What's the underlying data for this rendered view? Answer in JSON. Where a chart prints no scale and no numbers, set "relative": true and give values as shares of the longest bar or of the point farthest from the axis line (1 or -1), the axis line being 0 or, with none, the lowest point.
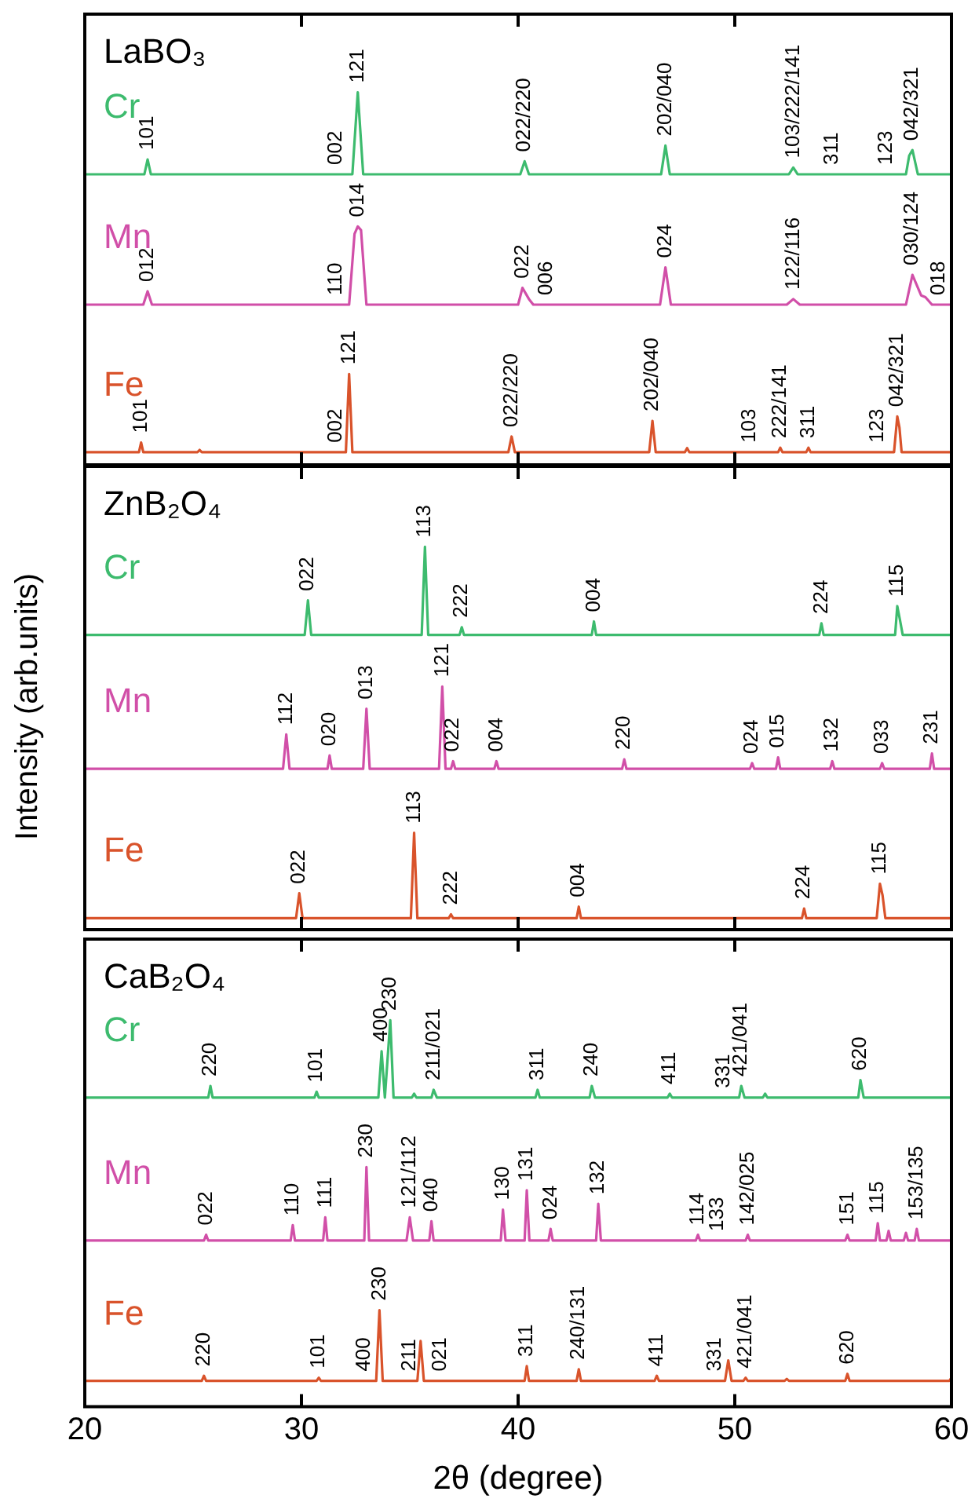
{
  "chart_data": [
    {
      "type": "line",
      "title": "LaBO₃",
      "relative": true,
      "xlim": [
        20,
        60
      ],
      "xticks": [
        20,
        30,
        40,
        50,
        60
      ],
      "tick_labels": false,
      "series": [
        {
          "name": "Cr",
          "color": "#3dbb6e",
          "x": [
            20,
            22.75,
            22.9,
            23.05,
            32.35,
            32.6,
            32.85,
            40.1,
            40.3,
            40.5,
            46.6,
            46.8,
            47.0,
            52.5,
            52.7,
            52.9,
            57.9,
            58.05,
            58.2,
            58.45,
            60
          ],
          "values": [
            0.78,
            0.78,
            0.82,
            0.78,
            0.78,
            1.0,
            0.78,
            0.78,
            0.815,
            0.78,
            0.78,
            0.857,
            0.78,
            0.78,
            0.798,
            0.78,
            0.78,
            0.83,
            0.845,
            0.78,
            0.78
          ]
        },
        {
          "name": "Mn",
          "color": "#d14fa8",
          "x": [
            20,
            22.7,
            22.9,
            23.1,
            32.2,
            32.45,
            32.6,
            32.75,
            33.0,
            40.0,
            40.2,
            40.5,
            40.7,
            46.55,
            46.8,
            47.05,
            52.4,
            52.7,
            53.0,
            57.9,
            58.2,
            58.6,
            58.8,
            59.1,
            60
          ],
          "values": [
            0.43,
            0.43,
            0.466,
            0.43,
            0.43,
            0.62,
            0.64,
            0.63,
            0.43,
            0.43,
            0.475,
            0.445,
            0.43,
            0.43,
            0.53,
            0.43,
            0.43,
            0.445,
            0.43,
            0.43,
            0.51,
            0.455,
            0.45,
            0.43,
            0.43
          ]
        },
        {
          "name": "Fe",
          "color": "#d9532b",
          "x": [
            20,
            22.5,
            22.6,
            22.7,
            25.2,
            25.3,
            25.4,
            32.05,
            32.2,
            32.35,
            39.55,
            39.7,
            39.85,
            46.05,
            46.2,
            46.35,
            47.7,
            47.8,
            47.9,
            52.0,
            52.1,
            52.2,
            53.3,
            53.4,
            53.5,
            57.35,
            57.5,
            57.6,
            57.7,
            60
          ],
          "values": [
            0.034,
            0.034,
            0.06,
            0.034,
            0.034,
            0.04,
            0.034,
            0.034,
            0.244,
            0.034,
            0.034,
            0.076,
            0.034,
            0.034,
            0.118,
            0.034,
            0.034,
            0.045,
            0.034,
            0.034,
            0.046,
            0.034,
            0.034,
            0.046,
            0.034,
            0.034,
            0.13,
            0.1,
            0.034,
            0.034
          ]
        }
      ],
      "annotations": [
        {
          "text": "101",
          "x": 22.9,
          "y": 0.82
        },
        {
          "text": "002",
          "x": 31.6,
          "y": 0.78
        },
        {
          "text": "121",
          "x": 32.6,
          "y": 1.0
        },
        {
          "text": "022/220",
          "x": 40.3,
          "y": 0.815
        },
        {
          "text": "202/040",
          "x": 46.8,
          "y": 0.857
        },
        {
          "text": "103/222/141",
          "x": 52.7,
          "y": 0.798
        },
        {
          "text": "311",
          "x": 54.5,
          "y": 0.78
        },
        {
          "text": "123",
          "x": 57.0,
          "y": 0.78
        },
        {
          "text": "042/321",
          "x": 58.2,
          "y": 0.845
        },
        {
          "text": "012",
          "x": 22.9,
          "y": 0.466
        },
        {
          "text": "110",
          "x": 31.6,
          "y": 0.43
        },
        {
          "text": "014",
          "x": 32.6,
          "y": 0.64
        },
        {
          "text": "022",
          "x": 40.2,
          "y": 0.475
        },
        {
          "text": "006",
          "x": 41.3,
          "y": 0.43
        },
        {
          "text": "024",
          "x": 46.8,
          "y": 0.53
        },
        {
          "text": "122/116",
          "x": 52.7,
          "y": 0.445
        },
        {
          "text": "030/124",
          "x": 58.2,
          "y": 0.51
        },
        {
          "text": "018",
          "x": 59.4,
          "y": 0.43
        },
        {
          "text": "101",
          "x": 22.6,
          "y": 0.06
        },
        {
          "text": "002",
          "x": 31.6,
          "y": 0.034
        },
        {
          "text": "121",
          "x": 32.2,
          "y": 0.244
        },
        {
          "text": "022/220",
          "x": 39.7,
          "y": 0.076
        },
        {
          "text": "202/040",
          "x": 46.2,
          "y": 0.118
        },
        {
          "text": "103",
          "x": 50.7,
          "y": 0.034
        },
        {
          "text": "222/141",
          "x": 52.1,
          "y": 0.046
        },
        {
          "text": "311",
          "x": 53.4,
          "y": 0.046
        },
        {
          "text": "123",
          "x": 56.6,
          "y": 0.034
        },
        {
          "text": "042/321",
          "x": 57.5,
          "y": 0.13
        }
      ]
    },
    {
      "type": "line",
      "title": "ZnB₂O₄",
      "ylabel": "Intensity (arb.units)",
      "relative": true,
      "xlim": [
        20,
        60
      ],
      "xticks": [
        20,
        30,
        40,
        50,
        60
      ],
      "tick_labels": false,
      "series": [
        {
          "name": "Cr",
          "color": "#3dbb6e",
          "x": [
            20,
            30.15,
            30.3,
            30.45,
            35.55,
            35.7,
            35.85,
            37.3,
            37.4,
            37.5,
            43.4,
            43.5,
            43.6,
            53.9,
            54.0,
            54.1,
            57.4,
            57.5,
            57.62,
            57.75,
            60
          ],
          "values": [
            0.77,
            0.77,
            0.86,
            0.77,
            0.77,
            1.0,
            0.77,
            0.77,
            0.79,
            0.77,
            0.77,
            0.805,
            0.77,
            0.77,
            0.8,
            0.77,
            0.77,
            0.845,
            0.81,
            0.77,
            0.77
          ]
        },
        {
          "name": "Mn",
          "color": "#d14fa8",
          "x": [
            20,
            29.15,
            29.3,
            29.45,
            31.2,
            31.3,
            31.4,
            32.85,
            33.0,
            33.15,
            36.35,
            36.5,
            36.65,
            36.9,
            37.0,
            37.1,
            38.9,
            39.0,
            39.1,
            44.8,
            44.9,
            45.0,
            50.7,
            50.8,
            50.9,
            51.9,
            52.0,
            52.1,
            54.4,
            54.5,
            54.6,
            56.7,
            56.8,
            56.9,
            59.0,
            59.1,
            59.2,
            60
          ],
          "values": [
            0.42,
            0.42,
            0.51,
            0.42,
            0.42,
            0.455,
            0.42,
            0.42,
            0.577,
            0.42,
            0.42,
            0.635,
            0.42,
            0.42,
            0.44,
            0.42,
            0.42,
            0.44,
            0.42,
            0.42,
            0.445,
            0.42,
            0.42,
            0.435,
            0.42,
            0.42,
            0.45,
            0.42,
            0.42,
            0.44,
            0.42,
            0.42,
            0.435,
            0.42,
            0.42,
            0.46,
            0.42,
            0.42
          ]
        },
        {
          "name": "Fe",
          "color": "#d9532b",
          "x": [
            20,
            29.75,
            29.9,
            30.05,
            35.05,
            35.2,
            35.35,
            36.8,
            36.9,
            37.0,
            42.7,
            42.8,
            42.9,
            53.1,
            53.2,
            53.3,
            56.55,
            56.7,
            56.82,
            56.95,
            60
          ],
          "values": [
            0.03,
            0.03,
            0.095,
            0.03,
            0.03,
            0.253,
            0.03,
            0.03,
            0.04,
            0.03,
            0.03,
            0.06,
            0.03,
            0.03,
            0.055,
            0.03,
            0.03,
            0.12,
            0.09,
            0.03,
            0.03
          ]
        }
      ],
      "annotations": [
        {
          "text": "022",
          "x": 30.3,
          "y": 0.86
        },
        {
          "text": "113",
          "x": 35.7,
          "y": 1.0
        },
        {
          "text": "222",
          "x": 37.4,
          "y": 0.79
        },
        {
          "text": "004",
          "x": 43.5,
          "y": 0.805
        },
        {
          "text": "224",
          "x": 54.0,
          "y": 0.8
        },
        {
          "text": "115",
          "x": 57.5,
          "y": 0.845
        },
        {
          "text": "112",
          "x": 29.3,
          "y": 0.51
        },
        {
          "text": "020",
          "x": 31.3,
          "y": 0.455
        },
        {
          "text": "013",
          "x": 33.0,
          "y": 0.577
        },
        {
          "text": "121",
          "x": 36.5,
          "y": 0.635
        },
        {
          "text": "022",
          "x": 37.0,
          "y": 0.44
        },
        {
          "text": "004",
          "x": 39.0,
          "y": 0.44
        },
        {
          "text": "220",
          "x": 44.9,
          "y": 0.445
        },
        {
          "text": "024",
          "x": 50.8,
          "y": 0.435
        },
        {
          "text": "015",
          "x": 52.0,
          "y": 0.45
        },
        {
          "text": "132",
          "x": 54.5,
          "y": 0.44
        },
        {
          "text": "033",
          "x": 56.8,
          "y": 0.435
        },
        {
          "text": "231",
          "x": 59.1,
          "y": 0.46
        },
        {
          "text": "022",
          "x": 29.9,
          "y": 0.095
        },
        {
          "text": "113",
          "x": 35.2,
          "y": 0.253
        },
        {
          "text": "222",
          "x": 36.9,
          "y": 0.04
        },
        {
          "text": "004",
          "x": 42.8,
          "y": 0.06
        },
        {
          "text": "224",
          "x": 53.2,
          "y": 0.055
        },
        {
          "text": "115",
          "x": 56.7,
          "y": 0.12
        }
      ]
    },
    {
      "type": "line",
      "title": "CaB₂O₄",
      "xlabel": "2θ (degree)",
      "relative": true,
      "xlim": [
        20,
        60
      ],
      "xticks": [
        20,
        30,
        40,
        50,
        60
      ],
      "tick_labels": "x",
      "series": [
        {
          "name": "Cr",
          "color": "#3dbb6e",
          "x": [
            20,
            25.7,
            25.8,
            25.9,
            30.6,
            30.7,
            30.8,
            33.55,
            33.7,
            33.85,
            34.1,
            34.25,
            35.1,
            35.2,
            35.3,
            36.0,
            36.1,
            36.25,
            40.8,
            40.9,
            41.0,
            43.3,
            43.4,
            43.55,
            46.9,
            47.0,
            47.1,
            50.2,
            50.3,
            50.45,
            51.3,
            51.4,
            51.5,
            55.7,
            55.8,
            55.95,
            60
          ],
          "values": [
            0.8,
            0.8,
            0.83,
            0.8,
            0.8,
            0.815,
            0.8,
            0.8,
            0.92,
            0.8,
            1.0,
            0.8,
            0.8,
            0.81,
            0.8,
            0.8,
            0.82,
            0.8,
            0.8,
            0.82,
            0.8,
            0.8,
            0.83,
            0.8,
            0.8,
            0.81,
            0.8,
            0.8,
            0.83,
            0.8,
            0.8,
            0.81,
            0.8,
            0.8,
            0.845,
            0.8,
            0.8
          ]
        },
        {
          "name": "Mn",
          "color": "#d14fa8",
          "x": [
            20,
            25.5,
            25.6,
            25.7,
            29.5,
            29.6,
            29.7,
            31.0,
            31.1,
            31.2,
            32.9,
            33.0,
            33.12,
            34.85,
            35.0,
            35.15,
            35.9,
            36.0,
            36.1,
            39.2,
            39.3,
            39.42,
            40.3,
            40.4,
            40.52,
            41.4,
            41.5,
            41.6,
            43.6,
            43.7,
            43.82,
            48.2,
            48.3,
            48.4,
            50.5,
            50.6,
            50.7,
            55.1,
            55.2,
            55.3,
            56.5,
            56.6,
            56.7,
            57.0,
            57.1,
            57.2,
            57.8,
            57.9,
            58.0,
            58.3,
            58.4,
            58.5,
            60
          ],
          "values": [
            0.43,
            0.43,
            0.445,
            0.43,
            0.43,
            0.47,
            0.43,
            0.43,
            0.49,
            0.43,
            0.43,
            0.62,
            0.43,
            0.43,
            0.49,
            0.43,
            0.43,
            0.48,
            0.43,
            0.43,
            0.51,
            0.43,
            0.43,
            0.56,
            0.43,
            0.43,
            0.46,
            0.43,
            0.43,
            0.525,
            0.43,
            0.43,
            0.445,
            0.43,
            0.43,
            0.445,
            0.43,
            0.43,
            0.445,
            0.43,
            0.43,
            0.475,
            0.43,
            0.43,
            0.455,
            0.43,
            0.43,
            0.45,
            0.43,
            0.43,
            0.46,
            0.43,
            0.43
          ]
        },
        {
          "name": "Fe",
          "color": "#d9532b",
          "x": [
            20,
            25.4,
            25.5,
            25.6,
            30.7,
            30.8,
            30.9,
            33.45,
            33.6,
            33.75,
            35.35,
            35.5,
            35.65,
            40.3,
            40.4,
            40.5,
            42.7,
            42.8,
            42.9,
            46.3,
            46.4,
            46.5,
            49.55,
            49.7,
            49.85,
            50.4,
            50.5,
            50.6,
            52.3,
            52.4,
            52.5,
            55.1,
            55.2,
            55.3,
            59.9,
            60
          ],
          "values": [
            0.067,
            0.067,
            0.08,
            0.067,
            0.067,
            0.075,
            0.067,
            0.067,
            0.25,
            0.067,
            0.067,
            0.17,
            0.067,
            0.067,
            0.105,
            0.067,
            0.067,
            0.097,
            0.067,
            0.067,
            0.08,
            0.067,
            0.067,
            0.12,
            0.067,
            0.067,
            0.075,
            0.067,
            0.067,
            0.072,
            0.067,
            0.067,
            0.085,
            0.067,
            0.067,
            0.075
          ]
        }
      ],
      "annotations": [
        {
          "text": "220",
          "x": 25.8,
          "y": 0.83
        },
        {
          "text": "101",
          "x": 30.7,
          "y": 0.815
        },
        {
          "text": "400",
          "x": 33.7,
          "y": 0.92
        },
        {
          "text": "230",
          "x": 34.1,
          "y": 1.0
        },
        {
          "text": "211/021",
          "x": 36.1,
          "y": 0.82
        },
        {
          "text": "311",
          "x": 40.9,
          "y": 0.82
        },
        {
          "text": "240",
          "x": 43.4,
          "y": 0.83
        },
        {
          "text": "411",
          "x": 47.0,
          "y": 0.81
        },
        {
          "text": "331",
          "x": 49.5,
          "y": 0.8
        },
        {
          "text": "421/041",
          "x": 50.3,
          "y": 0.83
        },
        {
          "text": "620",
          "x": 55.8,
          "y": 0.845
        },
        {
          "text": "022",
          "x": 25.6,
          "y": 0.445
        },
        {
          "text": "110",
          "x": 29.6,
          "y": 0.47
        },
        {
          "text": "111",
          "x": 31.1,
          "y": 0.49
        },
        {
          "text": "230",
          "x": 33.0,
          "y": 0.62
        },
        {
          "text": "121/112",
          "x": 35.0,
          "y": 0.49
        },
        {
          "text": "040",
          "x": 36.0,
          "y": 0.48
        },
        {
          "text": "130",
          "x": 39.3,
          "y": 0.51
        },
        {
          "text": "131",
          "x": 40.4,
          "y": 0.56
        },
        {
          "text": "024",
          "x": 41.5,
          "y": 0.46
        },
        {
          "text": "132",
          "x": 43.7,
          "y": 0.525
        },
        {
          "text": "114",
          "x": 48.3,
          "y": 0.445
        },
        {
          "text": "133",
          "x": 49.2,
          "y": 0.43
        },
        {
          "text": "142/025",
          "x": 50.6,
          "y": 0.445
        },
        {
          "text": "151",
          "x": 55.2,
          "y": 0.445
        },
        {
          "text": "115",
          "x": 56.6,
          "y": 0.475
        },
        {
          "text": "153/135",
          "x": 58.4,
          "y": 0.46
        },
        {
          "text": "220",
          "x": 25.5,
          "y": 0.08
        },
        {
          "text": "101",
          "x": 30.8,
          "y": 0.075
        },
        {
          "text": "400",
          "x": 32.9,
          "y": 0.067
        },
        {
          "text": "230",
          "x": 33.6,
          "y": 0.25
        },
        {
          "text": "211",
          "x": 35.0,
          "y": 0.067
        },
        {
          "text": "021",
          "x": 36.4,
          "y": 0.067
        },
        {
          "text": "311",
          "x": 40.4,
          "y": 0.105
        },
        {
          "text": "240/131",
          "x": 42.8,
          "y": 0.097
        },
        {
          "text": "411",
          "x": 46.4,
          "y": 0.08
        },
        {
          "text": "331",
          "x": 49.1,
          "y": 0.067
        },
        {
          "text": "421/041",
          "x": 50.5,
          "y": 0.075
        },
        {
          "text": "620",
          "x": 55.2,
          "y": 0.085
        }
      ]
    }
  ]
}
